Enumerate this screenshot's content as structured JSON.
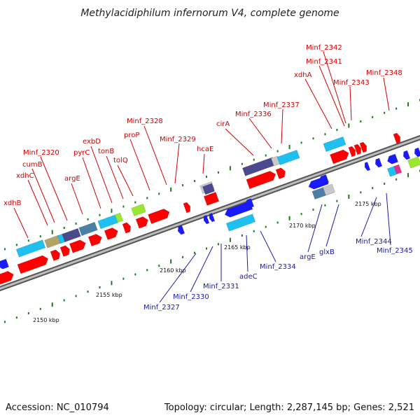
{
  "title": "Methylacidiphilum infernorum V4, complete genome",
  "footer": {
    "accession": "Accession: NC_010794",
    "summary": "Topology: circular; Length: 2,287,145 bp; Genes: 2,521"
  },
  "scale_labels": [
    "2150 kbp",
    "2155 kbp",
    "2160 kbp",
    "2165 kbp",
    "2170 kbp",
    "2175 kbp"
  ],
  "forward_labels": [
    "xdhB",
    "xdhC",
    "cumB",
    "Minf_2320",
    "argE",
    "pyrC",
    "exbD",
    "tonB",
    "tolQ",
    "proP",
    "Minf_2328",
    "Minf_2329",
    "hcaE",
    "cirA",
    "Minf_2336",
    "Minf_2337",
    "xdhA",
    "Minf_2341",
    "Minf_2342",
    "Minf_2343",
    "Minf_2348"
  ],
  "reverse_labels": [
    "Minf_2327",
    "Minf_2330",
    "Minf_2331",
    "adeC",
    "Minf_2334",
    "argE",
    "glxB",
    "Minf_2344",
    "Minf_2345"
  ],
  "colors": {
    "backbone": "#9a9a9a",
    "forward_gene": "#ff0000",
    "reverse_gene": "#1a1aff",
    "forward_label": "#d40000",
    "reverse_label": "#1a1aa6",
    "tick": "#1f7a1f",
    "cyan_gene": "#1fbfef",
    "purple_gene": "#4a4a8c",
    "lime_gene": "#99e633",
    "grey_gene": "#c8c8c8",
    "magenta_gene": "#e62e8c",
    "olive_gene": "#b3a466",
    "steel_gene": "#4a7fa6"
  }
}
